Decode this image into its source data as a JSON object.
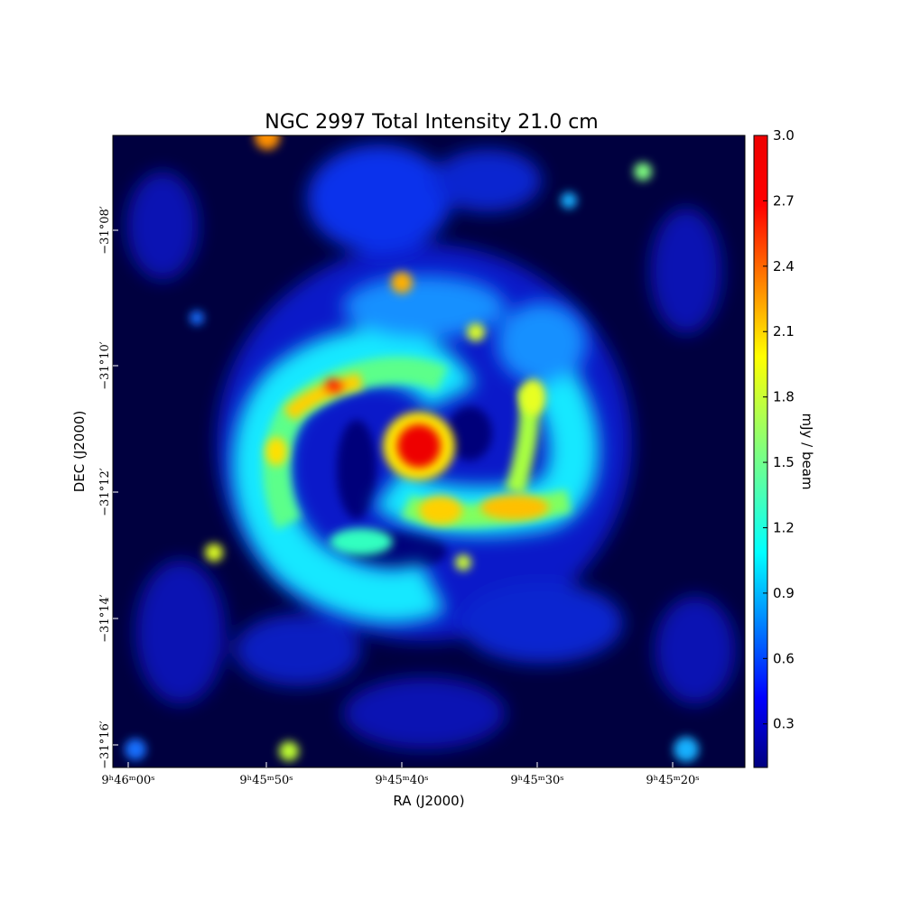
{
  "chart_data": {
    "type": "heatmap",
    "title": "NGC 2997 Total Intensity 21.0 cm",
    "xlabel": "RA (J2000)",
    "ylabel": "DEC (J2000)",
    "x_ticks": [
      "9ʰ46ᵐ00ˢ",
      "9ʰ45ᵐ50ˢ",
      "9ʰ45ᵐ40ˢ",
      "9ʰ45ᵐ30ˢ",
      "9ʰ45ᵐ20ˢ"
    ],
    "y_ticks": [
      "−31°08′",
      "−31°10′",
      "−31°12′",
      "−31°14′",
      "−31°16′"
    ],
    "colorbar": {
      "label": "mJy / beam",
      "range": [
        0.1,
        3.0
      ],
      "ticks": [
        "3.0",
        "2.7",
        "2.4",
        "2.1",
        "1.8",
        "1.5",
        "1.2",
        "0.9",
        "0.6",
        "0.3"
      ],
      "colormap": "jet"
    },
    "grid": false
  }
}
